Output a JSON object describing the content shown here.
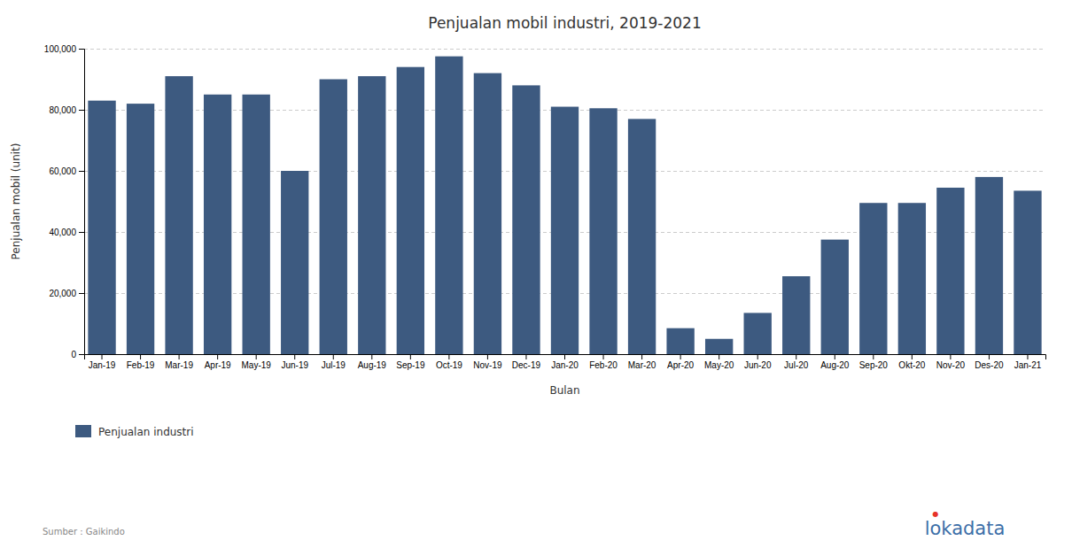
{
  "chart_data": {
    "type": "bar",
    "title": "Penjualan mobil industri, 2019-2021",
    "xlabel": "Bulan",
    "ylabel": "Penjualan mobil (unit)",
    "categories": [
      "Jan-19",
      "Feb-19",
      "Mar-19",
      "Apr-19",
      "May-19",
      "Jun-19",
      "Jul-19",
      "Aug-19",
      "Sep-19",
      "Oct-19",
      "Nov-19",
      "Dec-19",
      "Jan-20",
      "Feb-20",
      "Mar-20",
      "Apr-20",
      "May-20",
      "Jun-20",
      "Jul-20",
      "Aug-20",
      "Sep-20",
      "Okt-20",
      "Nov-20",
      "Des-20",
      "Jan-21"
    ],
    "series": [
      {
        "name": "Penjualan industri",
        "color": "#3d5a80",
        "values": [
          83000,
          82000,
          91000,
          85000,
          85000,
          60000,
          90000,
          91000,
          94000,
          97500,
          92000,
          88000,
          81000,
          80500,
          77000,
          8500,
          5000,
          13500,
          25500,
          37500,
          49500,
          49500,
          54500,
          58000,
          53500
        ]
      }
    ],
    "ylim": [
      0,
      100000
    ],
    "yticks": [
      0,
      {
        "value": 20000,
        "label": "20,000"
      },
      {
        "value": 40000,
        "label": "40,000"
      },
      {
        "value": 60000,
        "label": "60,000"
      },
      {
        "value": 80000,
        "label": "80,000"
      },
      {
        "value": 100000,
        "label": "100,000"
      }
    ],
    "grid": true,
    "legend": "bottom",
    "annotations": [
      {
        "text": "Sumber : Gaikindo",
        "color": "#888888"
      },
      {
        "text": "lokadata",
        "color": "#3d6fa8"
      },
      {
        "text": "●",
        "color": "#e63329"
      }
    ]
  }
}
